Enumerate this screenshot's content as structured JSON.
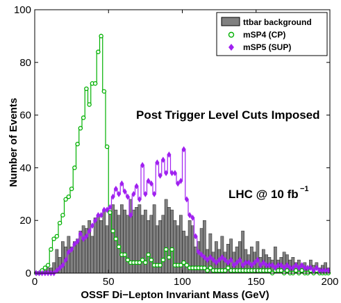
{
  "chart_data": {
    "type": "bar",
    "xlabel": "OSSF Di−Lepton Invariant Mass (GeV)",
    "ylabel": "Number of Events",
    "xlim": [
      0,
      200
    ],
    "ylim": [
      0,
      100
    ],
    "xticks": [
      "0",
      "50",
      "100",
      "150",
      "200"
    ],
    "yticks": [
      "0",
      "20",
      "40",
      "60",
      "80",
      "100"
    ],
    "grid": false,
    "legend_position": "top-right",
    "bin_width": 2,
    "bin_centers": [
      1,
      3,
      5,
      7,
      9,
      11,
      13,
      15,
      17,
      19,
      21,
      23,
      25,
      27,
      29,
      31,
      33,
      35,
      37,
      39,
      41,
      43,
      45,
      47,
      49,
      51,
      53,
      55,
      57,
      59,
      61,
      63,
      65,
      67,
      69,
      71,
      73,
      75,
      77,
      79,
      81,
      83,
      85,
      87,
      89,
      91,
      93,
      95,
      97,
      99,
      101,
      103,
      105,
      107,
      109,
      111,
      113,
      115,
      117,
      119,
      121,
      123,
      125,
      127,
      129,
      131,
      133,
      135,
      137,
      139,
      141,
      143,
      145,
      147,
      149,
      151,
      153,
      155,
      157,
      159,
      161,
      163,
      165,
      167,
      169,
      171,
      173,
      175,
      177,
      179,
      181,
      183,
      185,
      187,
      189,
      191,
      193,
      195,
      197,
      199
    ],
    "series": [
      {
        "name": "ttbar background",
        "style": "filled-histogram",
        "color": "#808080",
        "values": [
          0,
          0,
          0,
          1,
          2,
          2,
          4,
          9,
          6,
          12,
          10,
          14,
          10,
          12,
          13,
          16,
          18,
          17,
          20,
          14,
          21,
          22,
          20,
          24,
          18,
          23,
          26,
          24,
          22,
          26,
          24,
          22,
          28,
          24,
          25,
          26,
          22,
          24,
          20,
          22,
          26,
          18,
          20,
          22,
          28,
          25,
          24,
          20,
          18,
          22,
          16,
          14,
          20,
          18,
          10,
          12,
          17,
          20,
          9,
          15,
          8,
          12,
          9,
          14,
          8,
          11,
          13,
          8,
          10,
          12,
          16,
          9,
          7,
          10,
          8,
          12,
          6,
          9,
          7,
          6,
          5,
          10,
          5,
          6,
          8,
          7,
          5,
          6,
          4,
          5,
          3,
          4,
          2,
          5,
          3,
          4,
          2,
          3,
          4,
          2
        ]
      },
      {
        "name": "mSP4 (CP)",
        "style": "step-circles",
        "color": "#00b000",
        "values": [
          0,
          0,
          1,
          2,
          3,
          9,
          13,
          14,
          19,
          22,
          28,
          29,
          32,
          40,
          49,
          55,
          59,
          70,
          64,
          72,
          72,
          84,
          90,
          69,
          48,
          23,
          16,
          13,
          10,
          7,
          7,
          5,
          4,
          4,
          4,
          4,
          5,
          4,
          7,
          5,
          3,
          3,
          3,
          5,
          9,
          6,
          9,
          3,
          3,
          3,
          4,
          3,
          2,
          2,
          2,
          2,
          2,
          2,
          1,
          2,
          1,
          1,
          1,
          1,
          1,
          2,
          1,
          1,
          1,
          1,
          1,
          1,
          1,
          1,
          1,
          1,
          1,
          1,
          1,
          1,
          0,
          1,
          1,
          1,
          0,
          1,
          0,
          0,
          1,
          0,
          1,
          0,
          0,
          1,
          0,
          1,
          0,
          0,
          0,
          0
        ]
      },
      {
        "name": "mSP5 (SUP)",
        "style": "step-diamonds",
        "color": "#a020f0",
        "values": [
          0,
          0,
          0,
          0,
          0,
          0,
          0,
          1,
          2,
          3,
          5,
          8,
          9,
          11,
          12,
          15,
          13,
          14,
          16,
          18,
          20,
          22,
          22,
          24,
          24,
          25,
          29,
          32,
          30,
          34,
          31,
          29,
          22,
          30,
          33,
          28,
          41,
          30,
          35,
          34,
          30,
          42,
          37,
          43,
          38,
          45,
          38,
          38,
          34,
          35,
          47,
          28,
          22,
          21,
          14,
          8,
          7,
          6,
          5,
          6,
          5,
          4,
          5,
          6,
          5,
          4,
          5,
          3,
          4,
          5,
          3,
          4,
          4,
          3,
          4,
          5,
          3,
          4,
          3,
          3,
          3,
          2,
          3,
          3,
          2,
          3,
          2,
          2,
          3,
          2,
          3,
          2,
          2,
          2,
          1,
          2,
          1,
          1,
          1,
          1
        ]
      }
    ],
    "annotations": [
      "Post Trigger Level Cuts Imposed",
      "LHC @ 10 fb",
      "−1"
    ]
  }
}
